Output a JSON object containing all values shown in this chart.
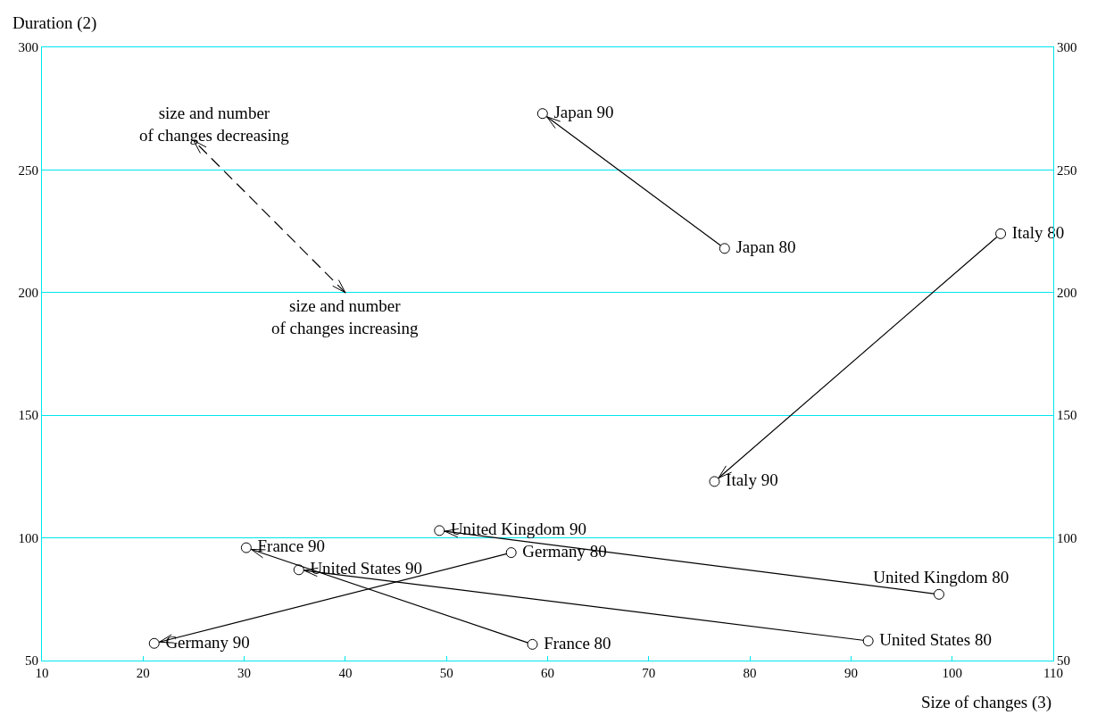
{
  "chart_data": {
    "type": "scatter",
    "xlabel": "Size of changes (3)",
    "ylabel": "Duration (2)",
    "xlim": [
      10,
      110
    ],
    "xticks": [
      10,
      20,
      30,
      40,
      50,
      60,
      70,
      80,
      90,
      100,
      110
    ],
    "ylim": [
      50,
      300
    ],
    "yticks": [
      50,
      100,
      150,
      200,
      250,
      300
    ],
    "y2lim": [
      50,
      300
    ],
    "y2ticks": [
      50,
      100,
      150,
      200,
      250,
      300
    ],
    "grid": "y",
    "marker": "circle",
    "series": [
      {
        "color": "#000000",
        "x": [
          77.5,
          59.5
        ],
        "values": [
          218,
          273
        ],
        "value_labels": [
          "Japan 80",
          "Japan 90"
        ]
      },
      {
        "color": "#000000",
        "x": [
          104.8,
          76.5
        ],
        "values": [
          224,
          123
        ],
        "value_labels": [
          "Italy 80",
          "Italy 90"
        ]
      },
      {
        "color": "#000000",
        "x": [
          98.7,
          49.3
        ],
        "values": [
          77,
          103
        ],
        "value_labels": [
          "United Kingdom 80",
          "United Kingdom 90"
        ]
      },
      {
        "color": "#000000",
        "x": [
          56.4,
          21.1
        ],
        "values": [
          94,
          57
        ],
        "value_labels": [
          "Germany 80",
          "Germany 90"
        ]
      },
      {
        "color": "#000000",
        "x": [
          58.5,
          30.2
        ],
        "values": [
          56.6,
          96
        ],
        "value_labels": [
          "France 80",
          "France 90"
        ]
      },
      {
        "color": "#000000",
        "x": [
          91.7,
          35.4
        ],
        "values": [
          58,
          87
        ],
        "value_labels": [
          "United States 80",
          "United States 90"
        ]
      }
    ],
    "annotations": [
      "size and number\nof changes decreasing",
      "size and number\nof changes increasing"
    ]
  }
}
